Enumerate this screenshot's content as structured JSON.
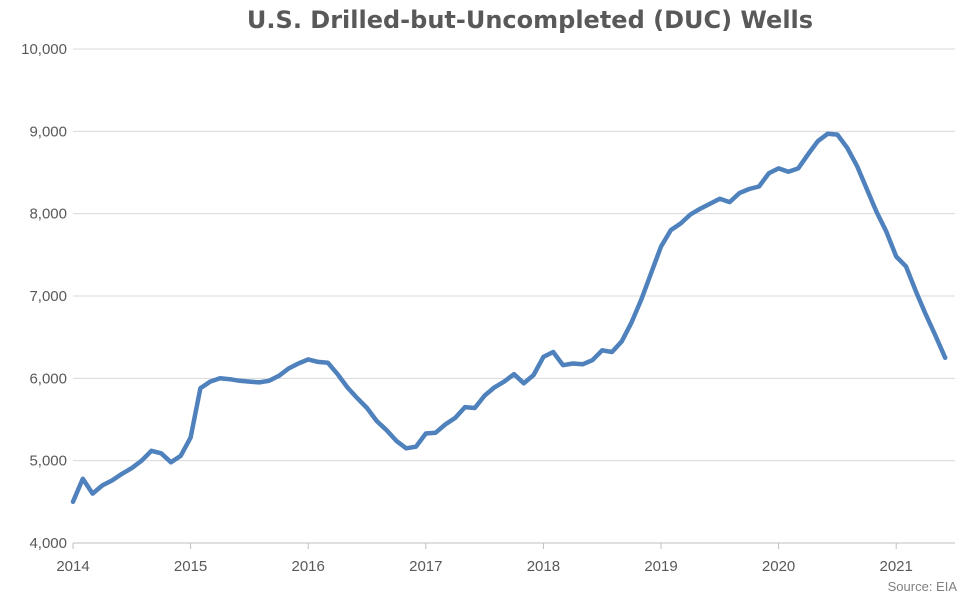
{
  "chart_data": {
    "type": "line",
    "title": "U.S. Drilled-but-Uncompleted (DUC) Wells",
    "source": "Source: EIA",
    "xlabel": "",
    "ylabel": "",
    "xlim": [
      2014,
      2021.5
    ],
    "ylim": [
      4000,
      10000
    ],
    "y_ticks": [
      4000,
      5000,
      6000,
      7000,
      8000,
      9000,
      10000
    ],
    "y_tick_labels": [
      "4,000",
      "5,000",
      "6,000",
      "7,000",
      "8,000",
      "9,000",
      "10,000"
    ],
    "x_ticks": [
      2014,
      2015,
      2016,
      2017,
      2018,
      2019,
      2020,
      2021
    ],
    "x_tick_labels": [
      "2014",
      "2015",
      "2016",
      "2017",
      "2018",
      "2019",
      "2020",
      "2021"
    ],
    "grid": "horizontal",
    "line_color": "#4f81bd",
    "series": [
      {
        "x": [
          "2014-01",
          "2014-02",
          "2014-03",
          "2014-04",
          "2014-05",
          "2014-06",
          "2014-07",
          "2014-08",
          "2014-09",
          "2014-10",
          "2014-11",
          "2014-12",
          "2015-01",
          "2015-02",
          "2015-03",
          "2015-04",
          "2015-05",
          "2015-06",
          "2015-07",
          "2015-08",
          "2015-09",
          "2015-10",
          "2015-11",
          "2015-12",
          "2016-01",
          "2016-02",
          "2016-03",
          "2016-04",
          "2016-05",
          "2016-06",
          "2016-07",
          "2016-08",
          "2016-09",
          "2016-10",
          "2016-11",
          "2016-12",
          "2017-01",
          "2017-02",
          "2017-03",
          "2017-04",
          "2017-05",
          "2017-06",
          "2017-07",
          "2017-08",
          "2017-09",
          "2017-10",
          "2017-11",
          "2017-12",
          "2018-01",
          "2018-02",
          "2018-03",
          "2018-04",
          "2018-05",
          "2018-06",
          "2018-07",
          "2018-08",
          "2018-09",
          "2018-10",
          "2018-11",
          "2018-12",
          "2019-01",
          "2019-02",
          "2019-03",
          "2019-04",
          "2019-05",
          "2019-06",
          "2019-07",
          "2019-08",
          "2019-09",
          "2019-10",
          "2019-11",
          "2019-12",
          "2020-01",
          "2020-02",
          "2020-03",
          "2020-04",
          "2020-05",
          "2020-06",
          "2020-07",
          "2020-08",
          "2020-09",
          "2020-10",
          "2020-11",
          "2020-12",
          "2021-01",
          "2021-02",
          "2021-03",
          "2021-04",
          "2021-05",
          "2021-06"
        ],
        "values": [
          4500,
          4780,
          4600,
          4700,
          4760,
          4840,
          4910,
          5000,
          5120,
          5090,
          4980,
          5060,
          5280,
          5880,
          5960,
          6000,
          5990,
          5970,
          5960,
          5950,
          5970,
          6030,
          6120,
          6180,
          6230,
          6200,
          6190,
          6050,
          5890,
          5760,
          5640,
          5480,
          5370,
          5240,
          5150,
          5170,
          5330,
          5340,
          5440,
          5520,
          5650,
          5640,
          5790,
          5890,
          5960,
          6050,
          5940,
          6040,
          6260,
          6320,
          6160,
          6180,
          6170,
          6220,
          6340,
          6320,
          6450,
          6680,
          6960,
          7280,
          7600,
          7800,
          7880,
          7990,
          8060,
          8120,
          8180,
          8140,
          8250,
          8300,
          8330,
          8490,
          8550,
          8510,
          8550,
          8720,
          8880,
          8970,
          8960,
          8800,
          8580,
          8300,
          8020,
          7780,
          7480,
          7360,
          7060,
          6780,
          6520,
          6250
        ]
      }
    ]
  }
}
